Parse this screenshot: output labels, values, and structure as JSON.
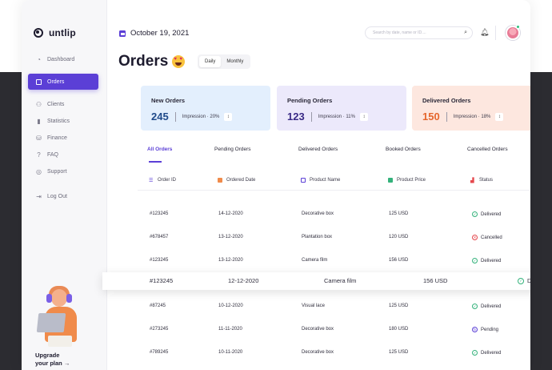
{
  "brand": {
    "name": "untlip"
  },
  "sidebar": {
    "items": [
      {
        "label": "Dashboard",
        "icon": "dashboard-icon"
      },
      {
        "label": "Orders",
        "icon": "orders-icon",
        "active": true
      },
      {
        "label": "Clients",
        "icon": "clients-icon"
      },
      {
        "label": "Statistics",
        "icon": "statistics-icon"
      },
      {
        "label": "Finance",
        "icon": "finance-icon"
      },
      {
        "label": "FAQ",
        "icon": "faq-icon"
      },
      {
        "label": "Support",
        "icon": "support-icon"
      },
      {
        "label": "Log Out",
        "icon": "logout-icon"
      }
    ],
    "upgrade": {
      "line1": "Upgrade",
      "line2": "your plan",
      "arrow": "→"
    }
  },
  "header": {
    "date": "October 19, 2021",
    "search_placeholder": "Search by date, name or ID...."
  },
  "page": {
    "title": "Orders",
    "toggle": {
      "daily": "Daily",
      "monthly": "Monthly"
    }
  },
  "cards": [
    {
      "title": "New Orders",
      "value": "245",
      "impression": "Impression · 20%",
      "bg": "#e3effd",
      "value_color": "#1f4a8a"
    },
    {
      "title": "Pending Orders",
      "value": "123",
      "impression": "Impression · 11%",
      "bg": "#ece9fb",
      "value_color": "#3a2a86"
    },
    {
      "title": "Delivered Orders",
      "value": "150",
      "impression": "Impression · 18%",
      "bg": "#fde7df",
      "value_color": "#e5662d"
    }
  ],
  "tabs": [
    "All Orders",
    "Pending Orders",
    "Delivered Orders",
    "Booked Orders",
    "Cancelled Orders"
  ],
  "table": {
    "headers": [
      "Order ID",
      "Ordered Date",
      "Product Name",
      "Product Price",
      "Status"
    ],
    "rows": [
      {
        "id": "#123245",
        "date": "14-12-2020",
        "name": "Decorative box",
        "price": "125 USD",
        "status": "Delivered"
      },
      {
        "id": "#678457",
        "date": "13-12-2020",
        "name": "Plantation box",
        "price": "120 USD",
        "status": "Cancelled"
      },
      {
        "id": "#123245",
        "date": "13-12-2020",
        "name": "Camera film",
        "price": "156 USD",
        "status": "Delivered"
      },
      {
        "id": "#123245",
        "date": "12-12-2020",
        "name": "Camera film",
        "price": "156 USD",
        "status": "Delivered"
      },
      {
        "id": "#87245",
        "date": "10-12-2020",
        "name": "Visual lace",
        "price": "125 USD",
        "status": "Delivered"
      },
      {
        "id": "#273245",
        "date": "11-11-2020",
        "name": "Decorative box",
        "price": "180 USD",
        "status": "Pending"
      },
      {
        "id": "#789245",
        "date": "10-11-2020",
        "name": "Decorative box",
        "price": "125 USD",
        "status": "Delivered"
      }
    ]
  }
}
